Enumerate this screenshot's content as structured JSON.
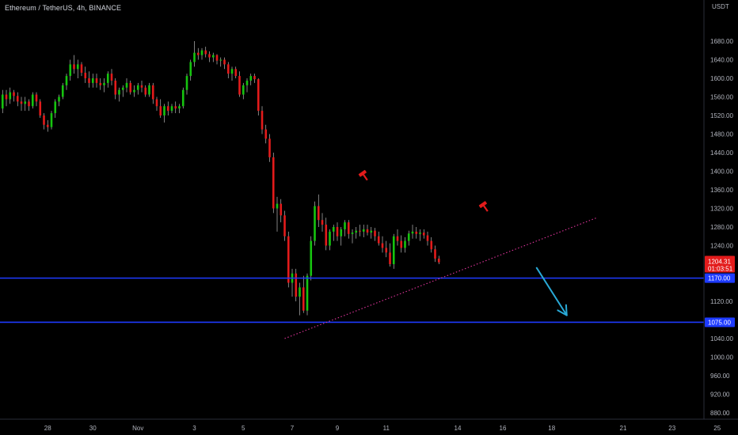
{
  "header": {
    "title": "Ethereum / TetherUS, 4h, BINANCE",
    "currency": "USDT"
  },
  "colors": {
    "background": "#000000",
    "up": "#16c40f",
    "down": "#e31b1b",
    "wick": "#d8d8d8",
    "support": "#1e3bff",
    "trendline": "#e0349c",
    "arrow": "#29a9d6",
    "axis_text": "#b2b5be",
    "price_badge": "#e31b1b"
  },
  "chart_data": {
    "type": "candlestick",
    "title": "Ethereum / TetherUS, 4h, BINANCE",
    "y_axis": {
      "unit": "USDT",
      "range": [
        860,
        1720
      ],
      "ticks": [
        "1680.00",
        "1640.00",
        "1600.00",
        "1560.00",
        "1520.00",
        "1480.00",
        "1440.00",
        "1400.00",
        "1360.00",
        "1320.00",
        "1280.00",
        "1240.00",
        "1200.00",
        "1160.00",
        "1120.00",
        "1080.00",
        "1040.00",
        "1000.00",
        "960.00",
        "920.00",
        "880.00"
      ],
      "hidden_ticks": [
        "1200.00",
        "1160.00",
        "1080.00"
      ]
    },
    "x_axis": {
      "labels": [
        {
          "label": "28",
          "bar": 13
        },
        {
          "label": "30",
          "bar": 25
        },
        {
          "label": "Nov",
          "bar": 37
        },
        {
          "label": "3",
          "bar": 52
        },
        {
          "label": "5",
          "bar": 65
        },
        {
          "label": "7",
          "bar": 78
        },
        {
          "label": "9",
          "bar": 90
        },
        {
          "label": "11",
          "bar": 103
        },
        {
          "label": "14",
          "bar": 122
        },
        {
          "label": "16",
          "bar": 134
        },
        {
          "label": "18",
          "bar": 147
        },
        {
          "label": "21",
          "bar": 166
        },
        {
          "label": "23",
          "bar": 179
        },
        {
          "label": "25",
          "bar": 191
        }
      ]
    },
    "candles": [
      [
        1480,
        1540,
        1470,
        1535
      ],
      [
        1535,
        1575,
        1525,
        1565
      ],
      [
        1565,
        1575,
        1540,
        1555
      ],
      [
        1555,
        1580,
        1545,
        1570
      ],
      [
        1570,
        1575,
        1550,
        1562
      ],
      [
        1562,
        1570,
        1540,
        1550
      ],
      [
        1550,
        1560,
        1530,
        1545
      ],
      [
        1545,
        1560,
        1530,
        1550
      ],
      [
        1550,
        1555,
        1530,
        1540
      ],
      [
        1540,
        1570,
        1535,
        1565
      ],
      [
        1565,
        1570,
        1540,
        1550
      ],
      [
        1550,
        1555,
        1515,
        1520
      ],
      [
        1520,
        1525,
        1490,
        1500
      ],
      [
        1500,
        1510,
        1485,
        1495
      ],
      [
        1495,
        1530,
        1490,
        1525
      ],
      [
        1525,
        1555,
        1515,
        1550
      ],
      [
        1550,
        1565,
        1540,
        1560
      ],
      [
        1560,
        1590,
        1555,
        1585
      ],
      [
        1585,
        1610,
        1575,
        1605
      ],
      [
        1605,
        1640,
        1595,
        1630
      ],
      [
        1630,
        1650,
        1610,
        1620
      ],
      [
        1620,
        1640,
        1600,
        1630
      ],
      [
        1630,
        1635,
        1605,
        1612
      ],
      [
        1612,
        1625,
        1590,
        1600
      ],
      [
        1600,
        1615,
        1580,
        1590
      ],
      [
        1590,
        1610,
        1580,
        1600
      ],
      [
        1600,
        1610,
        1580,
        1590
      ],
      [
        1590,
        1600,
        1575,
        1585
      ],
      [
        1585,
        1600,
        1570,
        1590
      ],
      [
        1590,
        1615,
        1580,
        1610
      ],
      [
        1610,
        1620,
        1585,
        1595
      ],
      [
        1595,
        1600,
        1555,
        1565
      ],
      [
        1565,
        1580,
        1550,
        1575
      ],
      [
        1575,
        1585,
        1560,
        1580
      ],
      [
        1580,
        1600,
        1570,
        1590
      ],
      [
        1590,
        1595,
        1565,
        1570
      ],
      [
        1570,
        1585,
        1560,
        1575
      ],
      [
        1575,
        1590,
        1565,
        1585
      ],
      [
        1585,
        1595,
        1570,
        1580
      ],
      [
        1580,
        1585,
        1560,
        1565
      ],
      [
        1565,
        1590,
        1560,
        1585
      ],
      [
        1585,
        1590,
        1545,
        1555
      ],
      [
        1555,
        1560,
        1530,
        1540
      ],
      [
        1540,
        1555,
        1515,
        1520
      ],
      [
        1520,
        1545,
        1505,
        1540
      ],
      [
        1540,
        1550,
        1520,
        1530
      ],
      [
        1530,
        1545,
        1525,
        1540
      ],
      [
        1540,
        1550,
        1525,
        1535
      ],
      [
        1535,
        1545,
        1525,
        1540
      ],
      [
        1540,
        1580,
        1535,
        1575
      ],
      [
        1575,
        1610,
        1565,
        1605
      ],
      [
        1605,
        1640,
        1595,
        1635
      ],
      [
        1635,
        1680,
        1625,
        1655
      ],
      [
        1655,
        1665,
        1640,
        1650
      ],
      [
        1650,
        1665,
        1640,
        1660
      ],
      [
        1660,
        1668,
        1645,
        1652
      ],
      [
        1652,
        1658,
        1635,
        1645
      ],
      [
        1645,
        1655,
        1635,
        1650
      ],
      [
        1650,
        1652,
        1630,
        1638
      ],
      [
        1638,
        1645,
        1625,
        1640
      ],
      [
        1640,
        1645,
        1620,
        1630
      ],
      [
        1630,
        1635,
        1600,
        1610
      ],
      [
        1610,
        1625,
        1595,
        1620
      ],
      [
        1620,
        1625,
        1600,
        1605
      ],
      [
        1605,
        1615,
        1560,
        1565
      ],
      [
        1565,
        1590,
        1555,
        1585
      ],
      [
        1585,
        1600,
        1570,
        1595
      ],
      [
        1595,
        1610,
        1585,
        1605
      ],
      [
        1605,
        1610,
        1590,
        1598
      ],
      [
        1598,
        1600,
        1520,
        1530
      ],
      [
        1530,
        1540,
        1480,
        1490
      ],
      [
        1490,
        1500,
        1460,
        1470
      ],
      [
        1470,
        1480,
        1420,
        1430
      ],
      [
        1430,
        1440,
        1310,
        1320
      ],
      [
        1320,
        1345,
        1270,
        1330
      ],
      [
        1330,
        1340,
        1290,
        1305
      ],
      [
        1305,
        1315,
        1250,
        1260
      ],
      [
        1260,
        1270,
        1150,
        1160
      ],
      [
        1160,
        1190,
        1130,
        1180
      ],
      [
        1180,
        1190,
        1120,
        1130
      ],
      [
        1130,
        1160,
        1090,
        1150
      ],
      [
        1150,
        1175,
        1095,
        1100
      ],
      [
        1100,
        1180,
        1090,
        1175
      ],
      [
        1175,
        1260,
        1165,
        1250
      ],
      [
        1250,
        1335,
        1240,
        1325
      ],
      [
        1325,
        1350,
        1280,
        1295
      ],
      [
        1295,
        1310,
        1270,
        1285
      ],
      [
        1285,
        1300,
        1230,
        1240
      ],
      [
        1240,
        1275,
        1230,
        1270
      ],
      [
        1270,
        1285,
        1250,
        1280
      ],
      [
        1280,
        1290,
        1250,
        1260
      ],
      [
        1260,
        1280,
        1240,
        1275
      ],
      [
        1275,
        1295,
        1260,
        1290
      ],
      [
        1290,
        1295,
        1255,
        1265
      ],
      [
        1265,
        1275,
        1245,
        1268
      ],
      [
        1268,
        1280,
        1255,
        1272
      ],
      [
        1272,
        1285,
        1260,
        1270
      ],
      [
        1270,
        1285,
        1258,
        1275
      ],
      [
        1275,
        1285,
        1262,
        1268
      ],
      [
        1268,
        1280,
        1255,
        1272
      ],
      [
        1272,
        1278,
        1250,
        1260
      ],
      [
        1260,
        1270,
        1240,
        1245
      ],
      [
        1245,
        1260,
        1225,
        1235
      ],
      [
        1235,
        1250,
        1215,
        1225
      ],
      [
        1225,
        1245,
        1195,
        1200
      ],
      [
        1200,
        1265,
        1190,
        1260
      ],
      [
        1260,
        1275,
        1240,
        1250
      ],
      [
        1250,
        1262,
        1225,
        1235
      ],
      [
        1235,
        1258,
        1225,
        1250
      ],
      [
        1250,
        1272,
        1240,
        1266
      ],
      [
        1266,
        1285,
        1255,
        1270
      ],
      [
        1270,
        1280,
        1255,
        1265
      ],
      [
        1265,
        1275,
        1250,
        1268
      ],
      [
        1268,
        1275,
        1255,
        1262
      ],
      [
        1262,
        1270,
        1240,
        1250
      ],
      [
        1250,
        1258,
        1225,
        1232
      ],
      [
        1232,
        1240,
        1205,
        1212
      ],
      [
        1212,
        1218,
        1200,
        1204
      ]
    ],
    "support_levels": [
      {
        "price": 1170,
        "label": "1170.00"
      },
      {
        "price": 1075,
        "label": "1075.00"
      }
    ],
    "trendline": {
      "from": {
        "bar": 76,
        "price": 1040
      },
      "to": {
        "bar": 159,
        "price": 1300
      },
      "style": "dotted"
    },
    "arrow": {
      "from": {
        "bar": 143,
        "price": 1192
      },
      "to": {
        "bar": 151,
        "price": 1090
      }
    },
    "markers": [
      {
        "type": "hammer",
        "bar": 97,
        "price": 1392
      },
      {
        "type": "hammer",
        "bar": 129,
        "price": 1325
      }
    ],
    "last_price": {
      "price": 1204.31,
      "label": "1204.31",
      "countdown": "01:03:51"
    }
  }
}
